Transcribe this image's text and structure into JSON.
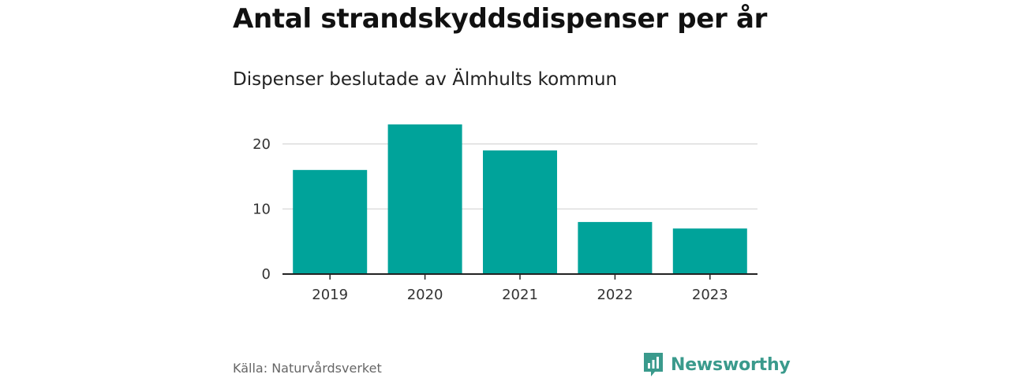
{
  "header": {
    "title": "Antal strandskyddsdispenser per år",
    "subtitle": "Dispenser beslutade av Älmhults kommun"
  },
  "footer": {
    "source": "Källa: Naturvårdsverket",
    "brand": "Newsworthy"
  },
  "colors": {
    "bar": "#00a39a",
    "brand": "#3a9a8c",
    "grid": "#dddddd",
    "axis": "#222222"
  },
  "chart_data": {
    "type": "bar",
    "title": "Antal strandskyddsdispenser per år",
    "subtitle": "Dispenser beslutade av Älmhults kommun",
    "categories": [
      "2019",
      "2020",
      "2021",
      "2022",
      "2023"
    ],
    "values": [
      16,
      23,
      19,
      8,
      7
    ],
    "yticks": [
      0,
      10,
      20
    ],
    "ylim": [
      0,
      23
    ],
    "xlabel": "",
    "ylabel": "",
    "grid": true
  }
}
